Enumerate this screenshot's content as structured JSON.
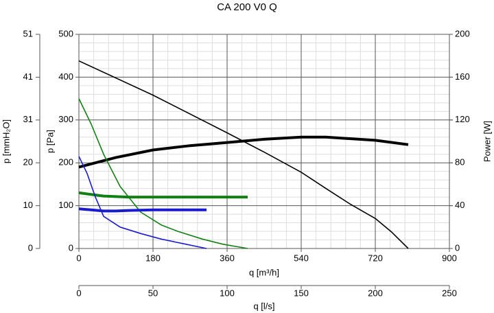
{
  "chart_data": {
    "type": "line",
    "title": "CA 200 V0 Q",
    "xlabel": "q [m³/h]",
    "xlim": [
      0,
      900
    ],
    "xticks": [
      0,
      180,
      360,
      540,
      720,
      900
    ],
    "x2label": "q [l/s]",
    "x2lim": [
      0,
      250
    ],
    "x2ticks": [
      0,
      50,
      100,
      150,
      200,
      250
    ],
    "ylabel": "p [Pa]",
    "ylim": [
      0,
      500
    ],
    "yticks": [
      0,
      100,
      200,
      300,
      400,
      500
    ],
    "y2label": "Power [W]",
    "y2lim": [
      0,
      200
    ],
    "y2ticks": [
      0,
      40,
      80,
      120,
      160,
      200
    ],
    "y3label": "p [mmH₂O]",
    "y3lim": [
      0,
      50.97
    ],
    "y3ticks": [
      0,
      {
        "value": 10.19,
        "label": "10"
      },
      {
        "value": 20.39,
        "label": "20"
      },
      {
        "value": 30.58,
        "label": "31"
      },
      {
        "value": 40.77,
        "label": "41"
      },
      {
        "value": 50.97,
        "label": "51"
      }
    ],
    "grid": true,
    "series": [
      {
        "color": "#000000",
        "x": [
          0,
          180,
          360,
          450,
          540,
          600,
          660,
          720,
          760,
          800
        ],
        "values": [
          438,
          358,
          270,
          225,
          178,
          140,
          103,
          70,
          38,
          0
        ]
      },
      {
        "color": "#000000",
        "axis": "y2",
        "x": [
          0,
          90,
          180,
          270,
          360,
          450,
          540,
          600,
          720,
          800
        ],
        "values": [
          76,
          85,
          92,
          96,
          99,
          102,
          104,
          104,
          101,
          97
        ]
      },
      {
        "color": "#108010",
        "x": [
          0,
          30,
          60,
          100,
          150,
          200,
          240,
          300,
          350,
          410
        ],
        "values": [
          350,
          290,
          220,
          145,
          85,
          55,
          40,
          22,
          10,
          0
        ]
      },
      {
        "color": "#108010",
        "axis": "y2",
        "x": [
          0,
          60,
          120,
          180,
          300,
          410
        ],
        "values": [
          52,
          49,
          48,
          48,
          48,
          48
        ]
      },
      {
        "color": "#1a1ad0",
        "x": [
          0,
          20,
          40,
          60,
          100,
          150,
          200,
          260,
          310
        ],
        "values": [
          215,
          175,
          120,
          75,
          50,
          35,
          22,
          10,
          0
        ]
      },
      {
        "color": "#1a1ad0",
        "axis": "y2",
        "x": [
          0,
          30,
          60,
          90,
          120,
          180,
          240,
          310
        ],
        "values": [
          37,
          36,
          35,
          35,
          35.5,
          36,
          36,
          36
        ]
      }
    ]
  }
}
